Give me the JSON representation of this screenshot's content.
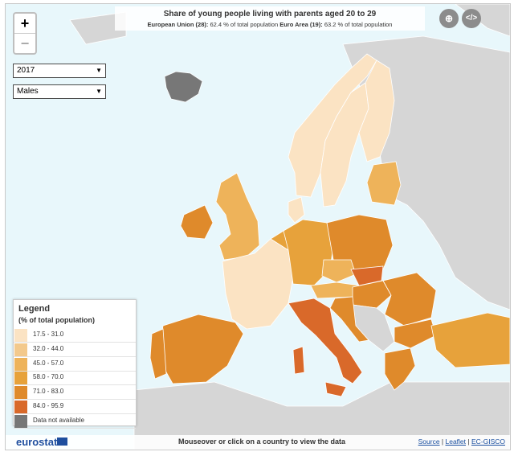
{
  "title": "Share of young people living with parents aged 20 to 29",
  "subtitle": {
    "eu_label": "European Union (28):",
    "eu_text": "62.4 % of total population",
    "ea_label": "Euro Area (19):",
    "ea_text": "63.2 % of total population"
  },
  "zoom": {
    "in_label": "+",
    "out_label": "−"
  },
  "year_select": {
    "value": "2017"
  },
  "sex_select": {
    "value": "Males"
  },
  "top_icons": [
    {
      "name": "globe-icon",
      "glyph": "⊕"
    },
    {
      "name": "embed-code-icon",
      "glyph": "</>"
    }
  ],
  "legend": {
    "title": "Legend",
    "subtitle": "(% of total population)",
    "items": [
      {
        "label": "17.5 - 31.0",
        "color": "#fbe3c3"
      },
      {
        "label": "32.0 - 44.0",
        "color": "#f3c98c"
      },
      {
        "label": "45.0 - 57.0",
        "color": "#eeb35a"
      },
      {
        "label": "58.0 - 70.0",
        "color": "#e7a23b"
      },
      {
        "label": "71.0 - 83.0",
        "color": "#df8a2b"
      },
      {
        "label": "84.0 - 95.9",
        "color": "#d9692a"
      },
      {
        "label": "Data not available",
        "color": "#777777"
      }
    ]
  },
  "colors": {
    "sea": "#e8f7fb",
    "nonEU": "#d6d6d6",
    "na": "#777777"
  },
  "footer": {
    "logo": "eurostat",
    "message": "Mouseover or click on a country to view the data",
    "links": [
      "Source",
      "Leaflet",
      "EC-GISCO"
    ]
  }
}
